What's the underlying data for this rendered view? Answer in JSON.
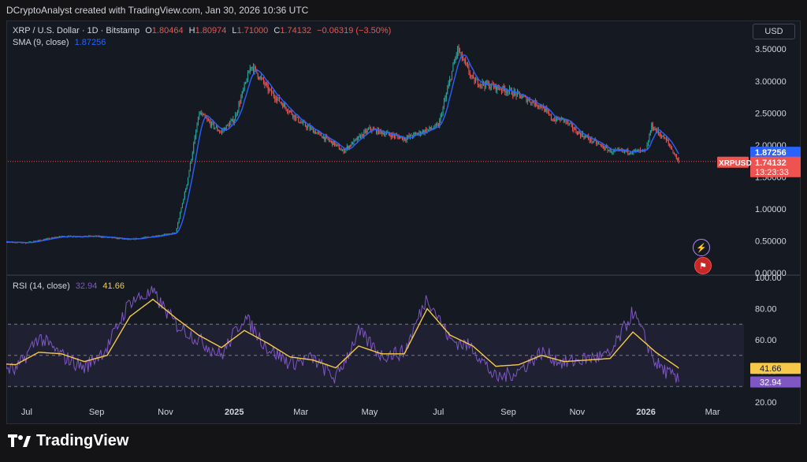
{
  "attribution": "DCryptoAnalyst created with TradingView.com, Jan 30, 2026 10:36 UTC",
  "currency_button": "USD",
  "legend": {
    "symbol": "XRP / U.S. Dollar · 1D · Bitstamp",
    "open_label": "O",
    "open": "1.80464",
    "high_label": "H",
    "high": "1.80974",
    "low_label": "L",
    "low": "1.71000",
    "close_label": "C",
    "close": "1.74132",
    "change": "−0.06319 (−3.50%)",
    "sma_label": "SMA (9, close)",
    "sma_value": "1.87256"
  },
  "rsi_legend": {
    "label": "RSI (14, close)",
    "rsi_value": "32.94",
    "ma_value": "41.66"
  },
  "price_badges": {
    "sma": "1.87256",
    "symbol": "XRPUSD",
    "price": "1.74132",
    "countdown": "13:23:33"
  },
  "rsi_badges": {
    "ma": "41.66",
    "rsi": "32.94"
  },
  "footer": {
    "brand": "TradingView"
  },
  "colors": {
    "up": "#26a69a",
    "down": "#ef5350",
    "sma": "#2962ff",
    "rsi": "#7e57c2",
    "rsi_ma": "#f7c948",
    "price_line": "#ef5350"
  },
  "chart_data": [
    {
      "type": "candlestick",
      "symbol": "XRP / U.S. Dollar",
      "interval": "1D",
      "exchange": "Bitstamp",
      "y_ticks": [
        "3.50000",
        "3.00000",
        "2.50000",
        "2.00000",
        "1.50000",
        "1.00000",
        "0.50000",
        "0.00000"
      ],
      "ylim": [
        0,
        3.7
      ],
      "x_ticks": [
        "Jul",
        "Sep",
        "Nov",
        "2025",
        "Mar",
        "May",
        "Jul",
        "Sep",
        "Nov",
        "2026",
        "Mar"
      ],
      "last_close": 1.74132,
      "sma_last": 1.87256,
      "x": [
        "2024-06",
        "2024-07",
        "2024-08",
        "2024-09",
        "2024-10",
        "2024-11-10",
        "2024-11-20",
        "2024-12-01",
        "2024-12-10",
        "2024-12-20",
        "2025-01",
        "2025-01-16",
        "2025-02",
        "2025-03",
        "2025-04",
        "2025-04-07",
        "2025-05",
        "2025-06",
        "2025-07",
        "2025-07-18",
        "2025-08",
        "2025-09",
        "2025-10",
        "2025-10-10",
        "2025-10-20",
        "2025-11",
        "2025-12",
        "2026-01",
        "2026-01-06",
        "2026-01-20",
        "2026-01-30"
      ],
      "close": [
        0.49,
        0.47,
        0.57,
        0.57,
        0.52,
        0.62,
        1.4,
        2.5,
        2.35,
        2.2,
        2.4,
        3.25,
        2.85,
        2.35,
        2.0,
        1.9,
        2.25,
        2.1,
        2.3,
        3.5,
        3.0,
        2.85,
        2.6,
        2.4,
        2.4,
        2.2,
        1.9,
        1.9,
        2.3,
        2.05,
        1.74
      ]
    },
    {
      "type": "line",
      "title": "RSI (14, close)",
      "y_ticks": [
        "100.00",
        "80.00",
        "60.00",
        "40.00",
        "20.00"
      ],
      "ylim": [
        20,
        100
      ],
      "bands": [
        70,
        50,
        30
      ],
      "series": [
        {
          "name": "RSI",
          "last": 32.94,
          "values": [
            45,
            40,
            62,
            50,
            42,
            55,
            85,
            90,
            70,
            60,
            50,
            75,
            55,
            45,
            48,
            35,
            65,
            50,
            52,
            88,
            60,
            55,
            35,
            40,
            52,
            45,
            48,
            50,
            78,
            45,
            33
          ]
        },
        {
          "name": "RSI-based MA",
          "last": 41.66,
          "values": [
            45,
            44,
            52,
            51,
            46,
            50,
            75,
            86,
            74,
            63,
            55,
            66,
            58,
            49,
            47,
            42,
            56,
            51,
            51,
            80,
            63,
            56,
            43,
            44,
            50,
            46,
            47,
            48,
            65,
            52,
            42
          ]
        }
      ]
    }
  ]
}
